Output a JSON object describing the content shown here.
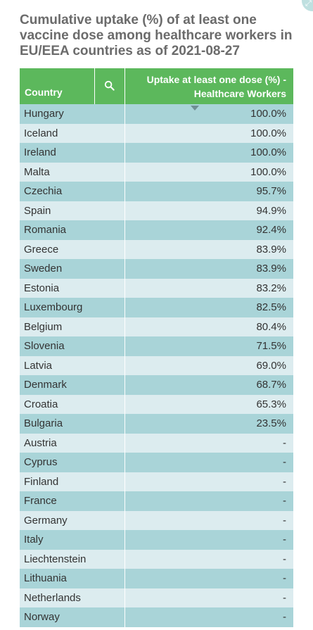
{
  "title": "Cumulative uptake (%) of at least one vaccine dose among healthcare workers in EU/EEA countries as of 2021-08-27",
  "icons": {
    "expand": "expand-icon",
    "search": "search-icon",
    "sort": "sort-descending-icon"
  },
  "colors": {
    "header_bg": "#5cb85c",
    "row_odd": "#a9d4d8",
    "row_even": "#dcecef",
    "title": "#6b6b6b"
  },
  "chart_data": {
    "type": "table",
    "title": "Cumulative uptake (%) of at least one vaccine dose among healthcare workers in EU/EEA countries as of 2021-08-27",
    "columns": [
      "Country",
      "Uptake at least one dose (%) - Healthcare Workers"
    ],
    "sort": {
      "column": "Uptake at least one dose (%) - Healthcare Workers",
      "direction": "descending"
    },
    "rows": [
      {
        "country": "Hungary",
        "uptake": "100.0%"
      },
      {
        "country": "Iceland",
        "uptake": "100.0%"
      },
      {
        "country": "Ireland",
        "uptake": "100.0%"
      },
      {
        "country": "Malta",
        "uptake": "100.0%"
      },
      {
        "country": "Czechia",
        "uptake": "95.7%"
      },
      {
        "country": "Spain",
        "uptake": "94.9%"
      },
      {
        "country": "Romania",
        "uptake": "92.4%"
      },
      {
        "country": "Greece",
        "uptake": "83.9%"
      },
      {
        "country": "Sweden",
        "uptake": "83.9%"
      },
      {
        "country": "Estonia",
        "uptake": "83.2%"
      },
      {
        "country": "Luxembourg",
        "uptake": "82.5%"
      },
      {
        "country": "Belgium",
        "uptake": "80.4%"
      },
      {
        "country": "Slovenia",
        "uptake": "71.5%"
      },
      {
        "country": "Latvia",
        "uptake": "69.0%"
      },
      {
        "country": "Denmark",
        "uptake": "68.7%"
      },
      {
        "country": "Croatia",
        "uptake": "65.3%"
      },
      {
        "country": "Bulgaria",
        "uptake": "23.5%"
      },
      {
        "country": "Austria",
        "uptake": "-"
      },
      {
        "country": "Cyprus",
        "uptake": "-"
      },
      {
        "country": "Finland",
        "uptake": "-"
      },
      {
        "country": "France",
        "uptake": "-"
      },
      {
        "country": "Germany",
        "uptake": "-"
      },
      {
        "country": "Italy",
        "uptake": "-"
      },
      {
        "country": "Liechtenstein",
        "uptake": "-"
      },
      {
        "country": "Lithuania",
        "uptake": "-"
      },
      {
        "country": "Netherlands",
        "uptake": "-"
      },
      {
        "country": "Norway",
        "uptake": "-"
      }
    ]
  }
}
